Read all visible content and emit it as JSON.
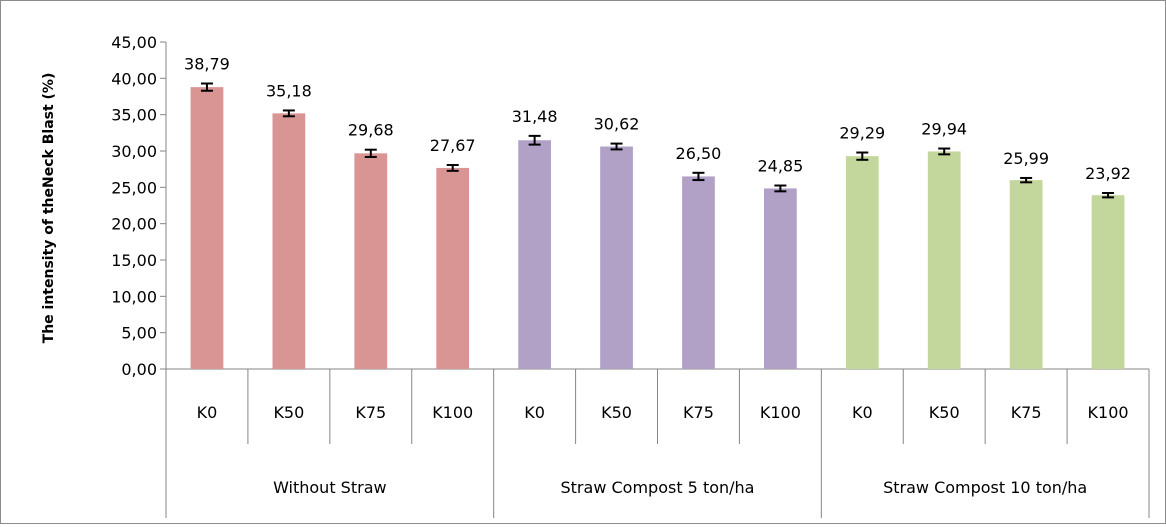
{
  "chart_data": {
    "type": "bar",
    "title": "",
    "xlabel": "",
    "ylabel": "The intensity of theNeck Blast (%)",
    "ylim": [
      0,
      45
    ],
    "yticks": [
      "0,00",
      "5,00",
      "10,00",
      "15,00",
      "20,00",
      "25,00",
      "30,00",
      "35,00",
      "40,00",
      "45,00"
    ],
    "grid": false,
    "legend": "none",
    "groups": [
      {
        "label": "Without Straw",
        "color": "#d99594",
        "categories": [
          "K0",
          "K50",
          "K75",
          "K100"
        ],
        "values": [
          38.79,
          35.18,
          29.68,
          27.67
        ],
        "labels": [
          "38,79",
          "35,18",
          "29,68",
          "27,67"
        ],
        "errors": [
          0.5,
          0.4,
          0.5,
          0.4
        ]
      },
      {
        "label": "Straw Compost 5 ton/ha",
        "color": "#b2a1c7",
        "categories": [
          "K0",
          "K50",
          "K75",
          "K100"
        ],
        "values": [
          31.48,
          30.62,
          26.5,
          24.85
        ],
        "labels": [
          "31,48",
          "30,62",
          "26,50",
          "24,85"
        ],
        "errors": [
          0.6,
          0.4,
          0.5,
          0.4
        ]
      },
      {
        "label": "Straw Compost 10 ton/ha",
        "color": "#c3d69b",
        "categories": [
          "K0",
          "K50",
          "K75",
          "K100"
        ],
        "values": [
          29.29,
          29.94,
          25.99,
          23.92
        ],
        "labels": [
          "29,29",
          "29,94",
          "25,99",
          "23,92"
        ],
        "errors": [
          0.5,
          0.4,
          0.3,
          0.3
        ]
      }
    ]
  }
}
